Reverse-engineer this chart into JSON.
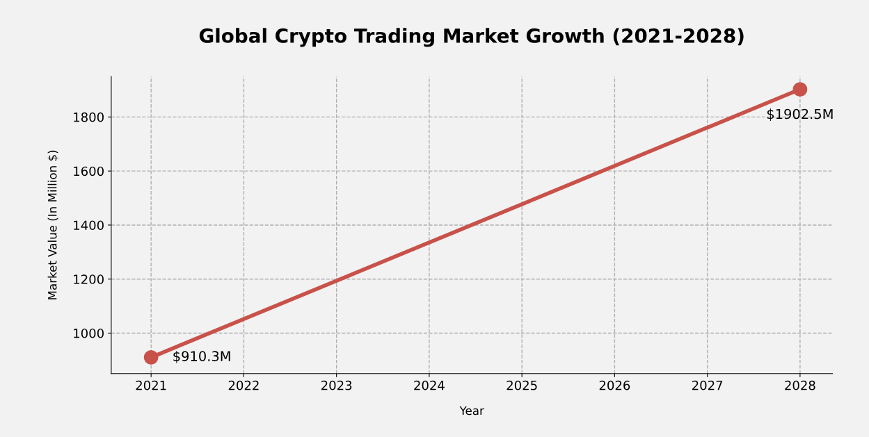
{
  "chart_data": {
    "type": "line",
    "title": "Global Crypto Trading Market Growth (2021-2028)",
    "xlabel": "Year",
    "ylabel": "Market Value (In Million $)",
    "x": [
      2021,
      2028
    ],
    "series": [
      {
        "color": "#c8524a",
        "values": [
          910.3,
          1902.5
        ]
      }
    ],
    "annotations": [
      {
        "text": "$910.3M",
        "x": 2021,
        "y": 910.3
      },
      {
        "text": "$1902.5M",
        "x": 2028,
        "y": 1902.5
      }
    ],
    "xlim": [
      2020.57,
      2028.35
    ],
    "xticks": [
      2021,
      2022,
      2023,
      2024,
      2025,
      2026,
      2027,
      2028
    ],
    "ylim": [
      850,
      1950
    ],
    "yticks": [
      1000,
      1200,
      1400,
      1600,
      1800
    ],
    "grid": true,
    "marker": "circle",
    "line_style": "solid"
  }
}
